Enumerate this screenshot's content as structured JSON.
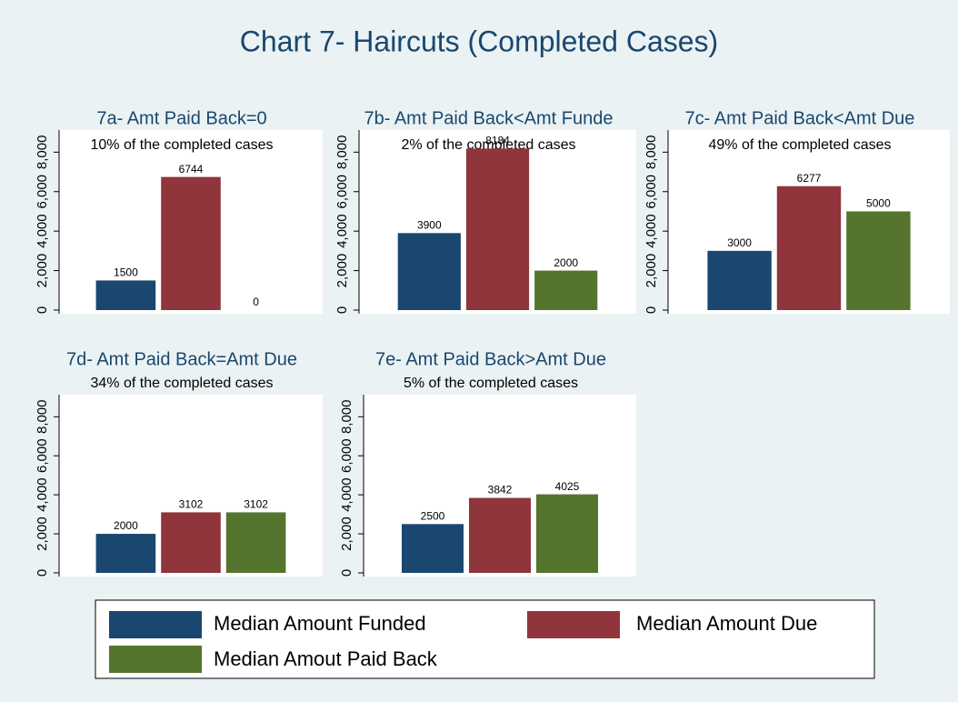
{
  "title": "Chart 7- Haircuts (Completed Cases)",
  "chart_data": [
    {
      "type": "bar",
      "title": "7a- Amt Paid Back=0",
      "subtitle": "10% of the completed cases",
      "series": [
        {
          "name": "Median Amount Funded",
          "color": "#1a476f",
          "values": [
            1500
          ]
        },
        {
          "name": "Median Amount Due",
          "color": "#90353b",
          "values": [
            6744
          ]
        },
        {
          "name": "Median Amout Paid Back",
          "color": "#55752f",
          "values": [
            0
          ]
        }
      ],
      "ylim": [
        0,
        8200
      ],
      "yticks": [
        0,
        {
          "value": 2000,
          "label": "2,000"
        },
        {
          "value": 4000,
          "label": "4,000"
        },
        {
          "value": 6000,
          "label": "6,000"
        },
        {
          "value": 8000,
          "label": "8,000"
        }
      ],
      "grid": false
    },
    {
      "type": "bar",
      "title": "7b- Amt Paid Back<Amt Funde",
      "subtitle": "2% of the completed cases",
      "series": [
        {
          "name": "Median Amount Funded",
          "color": "#1a476f",
          "values": [
            3900
          ]
        },
        {
          "name": "Median Amount Due",
          "color": "#90353b",
          "values": [
            8184
          ]
        },
        {
          "name": "Median Amout Paid Back",
          "color": "#55752f",
          "values": [
            2000
          ]
        }
      ],
      "ylim": [
        0,
        8200
      ],
      "yticks": [
        0,
        {
          "value": 2000,
          "label": "2,000"
        },
        {
          "value": 4000,
          "label": "4,000"
        },
        {
          "value": 6000,
          "label": "6,000"
        },
        {
          "value": 8000,
          "label": "8,000"
        }
      ],
      "grid": false
    },
    {
      "type": "bar",
      "title": "7c- Amt Paid Back<Amt Due",
      "subtitle": "49% of the completed cases",
      "series": [
        {
          "name": "Median Amount Funded",
          "color": "#1a476f",
          "values": [
            3000
          ]
        },
        {
          "name": "Median Amount Due",
          "color": "#90353b",
          "values": [
            6277
          ]
        },
        {
          "name": "Median Amout Paid Back",
          "color": "#55752f",
          "values": [
            5000
          ]
        }
      ],
      "ylim": [
        0,
        8200
      ],
      "yticks": [
        0,
        {
          "value": 2000,
          "label": "2,000"
        },
        {
          "value": 4000,
          "label": "4,000"
        },
        {
          "value": 6000,
          "label": "6,000"
        },
        {
          "value": 8000,
          "label": "8,000"
        }
      ],
      "grid": false
    },
    {
      "type": "bar",
      "title": "7d- Amt Paid Back=Amt Due",
      "subtitle": "34% of the completed cases",
      "series": [
        {
          "name": "Median Amount Funded",
          "color": "#1a476f",
          "values": [
            2000
          ]
        },
        {
          "name": "Median Amount Due",
          "color": "#90353b",
          "values": [
            3102
          ]
        },
        {
          "name": "Median Amout Paid Back",
          "color": "#55752f",
          "values": [
            3102
          ]
        }
      ],
      "ylim": [
        0,
        8200
      ],
      "yticks": [
        0,
        {
          "value": 2000,
          "label": "2,000"
        },
        {
          "value": 4000,
          "label": "4,000"
        },
        {
          "value": 6000,
          "label": "6,000"
        },
        {
          "value": 8000,
          "label": "8,000"
        }
      ],
      "grid": false
    },
    {
      "type": "bar",
      "title": "7e- Amt Paid Back>Amt Due",
      "subtitle": "5% of the completed cases",
      "series": [
        {
          "name": "Median Amount Funded",
          "color": "#1a476f",
          "values": [
            2500
          ]
        },
        {
          "name": "Median Amount Due",
          "color": "#90353b",
          "values": [
            3842
          ]
        },
        {
          "name": "Median Amout Paid Back",
          "color": "#55752f",
          "values": [
            4025
          ]
        }
      ],
      "ylim": [
        0,
        8200
      ],
      "yticks": [
        0,
        {
          "value": 2000,
          "label": "2,000"
        },
        {
          "value": 4000,
          "label": "4,000"
        },
        {
          "value": 6000,
          "label": "6,000"
        },
        {
          "value": 8000,
          "label": "8,000"
        }
      ],
      "grid": false
    }
  ]
}
